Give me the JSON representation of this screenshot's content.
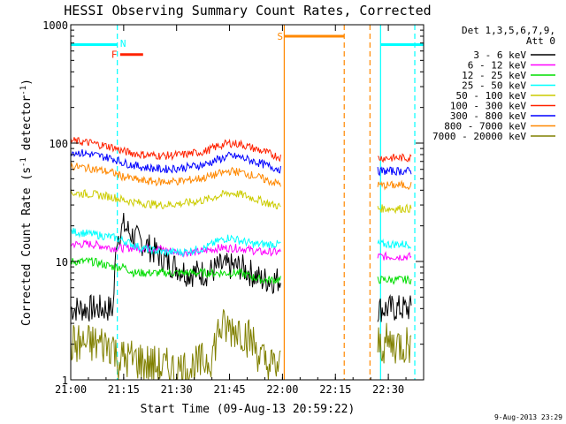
{
  "chart_data": {
    "type": "line",
    "title": "HESSI Observing Summary Count Rates, Corrected",
    "xlabel": "Start Time (09-Aug-13 20:59:22)",
    "ylabel_main": "Corrected Count Rate (s",
    "ylabel_sup1": "-1",
    "ylabel_mid": " detector",
    "ylabel_sup2": "-1",
    "ylabel_end": ")",
    "yscale": "log",
    "ylim": [
      1,
      1000
    ],
    "xlim_min": [
      0,
      100
    ],
    "x_ticks": [
      {
        "m": 0,
        "label": "21:00"
      },
      {
        "m": 15,
        "label": "21:15"
      },
      {
        "m": 30,
        "label": "21:30"
      },
      {
        "m": 45,
        "label": "21:45"
      },
      {
        "m": 60,
        "label": "22:00"
      },
      {
        "m": 75,
        "label": "22:15"
      },
      {
        "m": 90,
        "label": "22:30"
      }
    ],
    "y_ticks": [
      {
        "v": 1,
        "label": "1"
      },
      {
        "v": 10,
        "label": "10"
      },
      {
        "v": 100,
        "label": "100"
      },
      {
        "v": 1000,
        "label": "1000"
      }
    ],
    "legend_header": [
      "Det 1,3,5,6,7,9,",
      "Att 0"
    ],
    "legend_placement": "right",
    "footer_date": "9-Aug-2013 23:29",
    "series": [
      {
        "name": "3 - 6 keV",
        "color": "#000000",
        "x": [
          0,
          5,
          10,
          12,
          13,
          15,
          18,
          21,
          24,
          27,
          30,
          33,
          36,
          39,
          42,
          45,
          48,
          51,
          54,
          57,
          59.5,
          87,
          88,
          90,
          92,
          94,
          96.5
        ],
        "y": [
          4,
          4,
          4,
          4,
          16,
          20,
          16,
          14,
          12,
          10,
          9,
          8,
          8,
          8,
          9,
          9,
          9,
          8,
          7,
          7,
          7,
          4,
          4,
          4,
          4,
          4,
          4
        ]
      },
      {
        "name": "6 - 12 keV",
        "color": "#ff00ff",
        "x": [
          0,
          6,
          12,
          15,
          18,
          24,
          30,
          36,
          42,
          48,
          54,
          59.5,
          87,
          90,
          94,
          96.5
        ],
        "y": [
          14,
          14,
          13,
          13,
          13,
          13,
          12,
          12,
          13,
          13,
          12,
          12,
          11,
          11,
          11,
          11
        ]
      },
      {
        "name": "12 - 25 keV",
        "color": "#00dd00",
        "x": [
          0,
          6,
          12,
          15,
          18,
          24,
          30,
          36,
          42,
          48,
          54,
          59.5,
          87,
          90,
          94,
          96.5
        ],
        "y": [
          10,
          10,
          9,
          9,
          8,
          8,
          8,
          8,
          8,
          8,
          7,
          7,
          7,
          7,
          7,
          7
        ]
      },
      {
        "name": "25 - 50 keV",
        "color": "#00ffff",
        "x": [
          0,
          6,
          12,
          15,
          20,
          26,
          32,
          38,
          42,
          45,
          48,
          52,
          56,
          59.5,
          87,
          90,
          94,
          96.5
        ],
        "y": [
          18,
          17,
          16,
          15,
          13,
          12,
          12,
          13,
          15,
          16,
          15,
          14,
          14,
          14,
          14,
          14,
          14,
          14
        ]
      },
      {
        "name": "50 - 100 keV",
        "color": "#cccc00",
        "x": [
          0,
          6,
          12,
          15,
          20,
          26,
          32,
          38,
          42,
          45,
          48,
          52,
          56,
          59.5,
          87,
          90,
          94,
          96.5
        ],
        "y": [
          38,
          37,
          35,
          33,
          31,
          30,
          31,
          33,
          36,
          38,
          37,
          34,
          31,
          29,
          28,
          28,
          28,
          28
        ]
      },
      {
        "name": "100 - 300 keV",
        "color": "#ff2200",
        "x": [
          0,
          6,
          12,
          15,
          20,
          26,
          32,
          38,
          42,
          45,
          48,
          52,
          56,
          59.5,
          87,
          90,
          94,
          96.5
        ],
        "y": [
          105,
          100,
          92,
          85,
          80,
          78,
          80,
          85,
          95,
          100,
          98,
          90,
          82,
          76,
          75,
          75,
          75,
          75
        ]
      },
      {
        "name": "300 - 800 keV",
        "color": "#0000ff",
        "x": [
          0,
          6,
          12,
          15,
          20,
          26,
          32,
          38,
          42,
          45,
          48,
          52,
          56,
          59.5,
          87,
          90,
          94,
          96.5
        ],
        "y": [
          85,
          80,
          74,
          68,
          63,
          60,
          62,
          66,
          73,
          78,
          76,
          70,
          64,
          60,
          58,
          58,
          58,
          58
        ]
      },
      {
        "name": "800 - 7000 keV",
        "color": "#ff8800",
        "x": [
          0,
          6,
          12,
          15,
          20,
          26,
          32,
          38,
          42,
          45,
          48,
          52,
          56,
          59.5,
          87,
          90,
          94,
          96.5
        ],
        "y": [
          64,
          61,
          56,
          52,
          48,
          47,
          48,
          51,
          55,
          58,
          57,
          53,
          48,
          45,
          44,
          44,
          44,
          44
        ]
      },
      {
        "name": "7000 - 20000 keV",
        "color": "#808000",
        "x": [
          0,
          5,
          10,
          12,
          13,
          18,
          24,
          30,
          36,
          40,
          42,
          45,
          48,
          52,
          54,
          56,
          59.5,
          87,
          90,
          94,
          96.5
        ],
        "y": [
          2,
          2,
          2,
          2,
          1.5,
          1.5,
          1.3,
          1.2,
          1.3,
          1.6,
          2.7,
          2.7,
          2.7,
          2.0,
          1.5,
          1.3,
          1.3,
          2,
          2,
          2,
          2
        ]
      }
    ],
    "annotations": [
      {
        "label": "N",
        "x": 14,
        "y": 700,
        "color": "#00ffff"
      },
      {
        "label": "F",
        "x": 11.5,
        "y": 560,
        "color": "#ff2200"
      },
      {
        "label": "S",
        "x": 58.5,
        "y": 800,
        "color": "#ff8800"
      }
    ],
    "flag_bars": [
      {
        "name": "night",
        "color": "#00ffff",
        "x": [
          0,
          13.2
        ],
        "y": 680
      },
      {
        "name": "night",
        "color": "#00ffff",
        "x": [
          87.8,
          100
        ],
        "y": 680
      },
      {
        "name": "flare",
        "color": "#ff2200",
        "x": [
          14,
          20.5
        ],
        "y": 560
      },
      {
        "name": "saa",
        "color": "#ff8800",
        "x": [
          60.5,
          77.5
        ],
        "y": 800
      }
    ],
    "vlines": [
      {
        "x": 13.2,
        "color": "#00ffff",
        "style": "dash"
      },
      {
        "x": 87.8,
        "color": "#00ffff",
        "style": "solid"
      },
      {
        "x": 97.5,
        "color": "#00ffff",
        "style": "dash"
      },
      {
        "x": 60.5,
        "color": "#ff8800",
        "style": "solid"
      },
      {
        "x": 77.5,
        "color": "#ff8800",
        "style": "dash"
      },
      {
        "x": 84.8,
        "color": "#ff8800",
        "style": "dash"
      }
    ]
  }
}
